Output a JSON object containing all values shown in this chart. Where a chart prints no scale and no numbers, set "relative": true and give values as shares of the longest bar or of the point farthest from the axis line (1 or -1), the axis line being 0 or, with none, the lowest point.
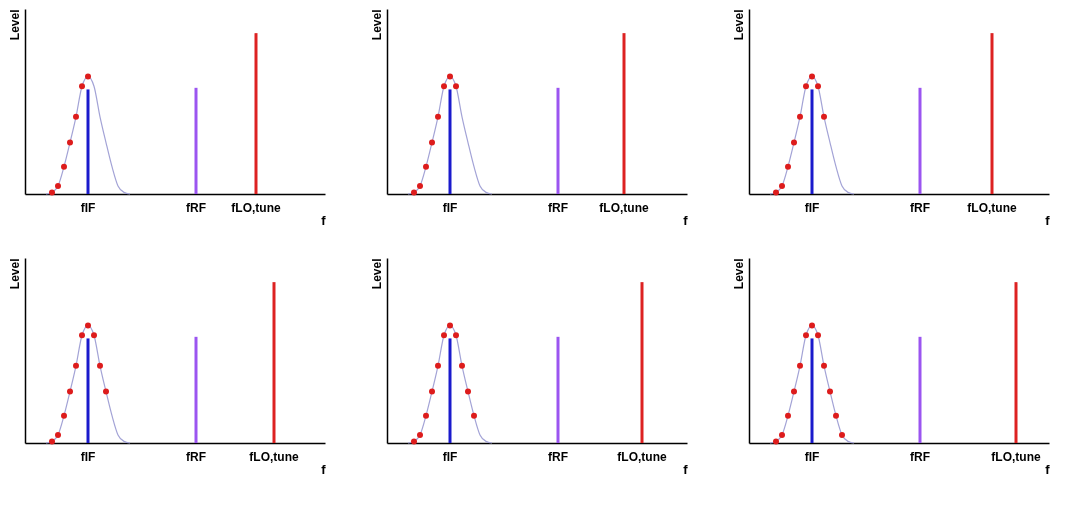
{
  "chart_data": [
    {
      "type": "bar",
      "relative": true,
      "ylabel": "Level",
      "xlabel": "f",
      "tick_labels": "x",
      "categories": [
        null,
        null,
        null,
        null,
        null,
        null,
        null,
        null,
        null,
        null,
        "fIF",
        null,
        null,
        null,
        null,
        null,
        null,
        null,
        null,
        null,
        null,
        null,
        null,
        null,
        null,
        null,
        null,
        null,
        "fRF",
        null,
        null,
        null,
        null,
        null,
        null,
        null,
        null,
        null,
        "fLO,tune",
        null,
        null,
        null,
        null,
        null,
        null,
        null,
        null,
        null,
        null,
        null
      ],
      "series": [
        {
          "type": "line",
          "color": "#a3a3d6",
          "values": [
            null,
            null,
            null,
            0,
            0.01,
            0.05,
            0.17,
            0.32,
            0.48,
            0.67,
            0.73,
            0.67,
            0.48,
            0.32,
            0.17,
            0.05,
            0.01,
            0,
            null,
            null,
            null,
            null,
            null,
            null,
            null,
            null,
            null,
            null,
            null,
            null,
            null,
            null,
            null,
            null,
            null,
            null,
            null,
            null,
            null,
            null,
            null,
            null,
            null,
            null,
            null,
            null,
            null,
            null,
            null,
            null
          ]
        },
        {
          "type": "scatter",
          "marker": "circle",
          "color": "#dd1c1c",
          "values": [
            null,
            null,
            null,
            null,
            0.01,
            0.05,
            0.17,
            0.32,
            0.48,
            0.67,
            0.73,
            null,
            null,
            null,
            null,
            null,
            null,
            null,
            null,
            null,
            null,
            null,
            null,
            null,
            null,
            null,
            null,
            null,
            null,
            null,
            null,
            null,
            null,
            null,
            null,
            null,
            null,
            null,
            null,
            null,
            null,
            null,
            null,
            null,
            null,
            null,
            null,
            null,
            null,
            null
          ]
        },
        {
          "color": "#1a1acc",
          "values": [
            null,
            null,
            null,
            null,
            null,
            null,
            null,
            null,
            null,
            null,
            0.65,
            null,
            null,
            null,
            null,
            null,
            null,
            null,
            null,
            null,
            null,
            null,
            null,
            null,
            null,
            null,
            null,
            null,
            null,
            null,
            null,
            null,
            null,
            null,
            null,
            null,
            null,
            null,
            null,
            null,
            null,
            null,
            null,
            null,
            null,
            null,
            null,
            null,
            null,
            null
          ]
        },
        {
          "color": "#9b55f0",
          "values": [
            null,
            null,
            null,
            null,
            null,
            null,
            null,
            null,
            null,
            null,
            null,
            null,
            null,
            null,
            null,
            null,
            null,
            null,
            null,
            null,
            null,
            null,
            null,
            null,
            null,
            null,
            null,
            null,
            0.66,
            null,
            null,
            null,
            null,
            null,
            null,
            null,
            null,
            null,
            null,
            null,
            null,
            null,
            null,
            null,
            null,
            null,
            null,
            null,
            null,
            null
          ]
        },
        {
          "color": "#dd2222",
          "values": [
            null,
            null,
            null,
            null,
            null,
            null,
            null,
            null,
            null,
            null,
            null,
            null,
            null,
            null,
            null,
            null,
            null,
            null,
            null,
            null,
            null,
            null,
            null,
            null,
            null,
            null,
            null,
            null,
            null,
            null,
            null,
            null,
            null,
            null,
            null,
            null,
            null,
            null,
            1,
            null,
            null,
            null,
            null,
            null,
            null,
            null,
            null,
            null,
            null,
            null
          ]
        }
      ]
    },
    {
      "type": "bar",
      "relative": true,
      "ylabel": "Level",
      "xlabel": "f",
      "tick_labels": "x",
      "categories": [
        null,
        null,
        null,
        null,
        null,
        null,
        null,
        null,
        null,
        null,
        "fIF",
        null,
        null,
        null,
        null,
        null,
        null,
        null,
        null,
        null,
        null,
        null,
        null,
        null,
        null,
        null,
        null,
        null,
        "fRF",
        null,
        null,
        null,
        null,
        null,
        null,
        null,
        null,
        null,
        null,
        "fLO,tune",
        null,
        null,
        null,
        null,
        null,
        null,
        null,
        null,
        null,
        null
      ],
      "series": [
        {
          "type": "line",
          "color": "#a3a3d6",
          "values": [
            null,
            null,
            null,
            0,
            0.01,
            0.05,
            0.17,
            0.32,
            0.48,
            0.67,
            0.73,
            0.67,
            0.48,
            0.32,
            0.17,
            0.05,
            0.01,
            0,
            null,
            null,
            null,
            null,
            null,
            null,
            null,
            null,
            null,
            null,
            null,
            null,
            null,
            null,
            null,
            null,
            null,
            null,
            null,
            null,
            null,
            null,
            null,
            null,
            null,
            null,
            null,
            null,
            null,
            null,
            null,
            null
          ]
        },
        {
          "type": "scatter",
          "marker": "circle",
          "color": "#dd1c1c",
          "values": [
            null,
            null,
            null,
            null,
            0.01,
            0.05,
            0.17,
            0.32,
            0.48,
            0.67,
            0.73,
            0.67,
            null,
            null,
            null,
            null,
            null,
            null,
            null,
            null,
            null,
            null,
            null,
            null,
            null,
            null,
            null,
            null,
            null,
            null,
            null,
            null,
            null,
            null,
            null,
            null,
            null,
            null,
            null,
            null,
            null,
            null,
            null,
            null,
            null,
            null,
            null,
            null,
            null,
            null
          ]
        },
        {
          "color": "#1a1acc",
          "values": [
            null,
            null,
            null,
            null,
            null,
            null,
            null,
            null,
            null,
            null,
            0.65,
            null,
            null,
            null,
            null,
            null,
            null,
            null,
            null,
            null,
            null,
            null,
            null,
            null,
            null,
            null,
            null,
            null,
            null,
            null,
            null,
            null,
            null,
            null,
            null,
            null,
            null,
            null,
            null,
            null,
            null,
            null,
            null,
            null,
            null,
            null,
            null,
            null,
            null,
            null
          ]
        },
        {
          "color": "#9b55f0",
          "values": [
            null,
            null,
            null,
            null,
            null,
            null,
            null,
            null,
            null,
            null,
            null,
            null,
            null,
            null,
            null,
            null,
            null,
            null,
            null,
            null,
            null,
            null,
            null,
            null,
            null,
            null,
            null,
            null,
            0.66,
            null,
            null,
            null,
            null,
            null,
            null,
            null,
            null,
            null,
            null,
            null,
            null,
            null,
            null,
            null,
            null,
            null,
            null,
            null,
            null,
            null
          ]
        },
        {
          "color": "#dd2222",
          "values": [
            null,
            null,
            null,
            null,
            null,
            null,
            null,
            null,
            null,
            null,
            null,
            null,
            null,
            null,
            null,
            null,
            null,
            null,
            null,
            null,
            null,
            null,
            null,
            null,
            null,
            null,
            null,
            null,
            null,
            null,
            null,
            null,
            null,
            null,
            null,
            null,
            null,
            null,
            null,
            1,
            null,
            null,
            null,
            null,
            null,
            null,
            null,
            null,
            null,
            null
          ]
        }
      ]
    },
    {
      "type": "bar",
      "relative": true,
      "ylabel": "Level",
      "xlabel": "f",
      "tick_labels": "x",
      "categories": [
        null,
        null,
        null,
        null,
        null,
        null,
        null,
        null,
        null,
        null,
        "fIF",
        null,
        null,
        null,
        null,
        null,
        null,
        null,
        null,
        null,
        null,
        null,
        null,
        null,
        null,
        null,
        null,
        null,
        "fRF",
        null,
        null,
        null,
        null,
        null,
        null,
        null,
        null,
        null,
        null,
        null,
        "fLO,tune",
        null,
        null,
        null,
        null,
        null,
        null,
        null,
        null,
        null
      ],
      "series": [
        {
          "type": "line",
          "color": "#a3a3d6",
          "values": [
            null,
            null,
            null,
            0,
            0.01,
            0.05,
            0.17,
            0.32,
            0.48,
            0.67,
            0.73,
            0.67,
            0.48,
            0.32,
            0.17,
            0.05,
            0.01,
            0,
            null,
            null,
            null,
            null,
            null,
            null,
            null,
            null,
            null,
            null,
            null,
            null,
            null,
            null,
            null,
            null,
            null,
            null,
            null,
            null,
            null,
            null,
            null,
            null,
            null,
            null,
            null,
            null,
            null,
            null,
            null,
            null
          ]
        },
        {
          "type": "scatter",
          "marker": "circle",
          "color": "#dd1c1c",
          "values": [
            null,
            null,
            null,
            null,
            0.01,
            0.05,
            0.17,
            0.32,
            0.48,
            0.67,
            0.73,
            0.67,
            0.48,
            null,
            null,
            null,
            null,
            null,
            null,
            null,
            null,
            null,
            null,
            null,
            null,
            null,
            null,
            null,
            null,
            null,
            null,
            null,
            null,
            null,
            null,
            null,
            null,
            null,
            null,
            null,
            null,
            null,
            null,
            null,
            null,
            null,
            null,
            null,
            null,
            null
          ]
        },
        {
          "color": "#1a1acc",
          "values": [
            null,
            null,
            null,
            null,
            null,
            null,
            null,
            null,
            null,
            null,
            0.65,
            null,
            null,
            null,
            null,
            null,
            null,
            null,
            null,
            null,
            null,
            null,
            null,
            null,
            null,
            null,
            null,
            null,
            null,
            null,
            null,
            null,
            null,
            null,
            null,
            null,
            null,
            null,
            null,
            null,
            null,
            null,
            null,
            null,
            null,
            null,
            null,
            null,
            null,
            null
          ]
        },
        {
          "color": "#9b55f0",
          "values": [
            null,
            null,
            null,
            null,
            null,
            null,
            null,
            null,
            null,
            null,
            null,
            null,
            null,
            null,
            null,
            null,
            null,
            null,
            null,
            null,
            null,
            null,
            null,
            null,
            null,
            null,
            null,
            null,
            0.66,
            null,
            null,
            null,
            null,
            null,
            null,
            null,
            null,
            null,
            null,
            null,
            null,
            null,
            null,
            null,
            null,
            null,
            null,
            null,
            null,
            null
          ]
        },
        {
          "color": "#dd2222",
          "values": [
            null,
            null,
            null,
            null,
            null,
            null,
            null,
            null,
            null,
            null,
            null,
            null,
            null,
            null,
            null,
            null,
            null,
            null,
            null,
            null,
            null,
            null,
            null,
            null,
            null,
            null,
            null,
            null,
            null,
            null,
            null,
            null,
            null,
            null,
            null,
            null,
            null,
            null,
            null,
            null,
            1,
            null,
            null,
            null,
            null,
            null,
            null,
            null,
            null,
            null
          ]
        }
      ]
    },
    {
      "type": "bar",
      "relative": true,
      "ylabel": "Level",
      "xlabel": "f",
      "tick_labels": "x",
      "categories": [
        null,
        null,
        null,
        null,
        null,
        null,
        null,
        null,
        null,
        null,
        "fIF",
        null,
        null,
        null,
        null,
        null,
        null,
        null,
        null,
        null,
        null,
        null,
        null,
        null,
        null,
        null,
        null,
        null,
        "fRF",
        null,
        null,
        null,
        null,
        null,
        null,
        null,
        null,
        null,
        null,
        null,
        null,
        "fLO,tune",
        null,
        null,
        null,
        null,
        null,
        null,
        null,
        null
      ],
      "series": [
        {
          "type": "line",
          "color": "#a3a3d6",
          "values": [
            null,
            null,
            null,
            0,
            0.01,
            0.05,
            0.17,
            0.32,
            0.48,
            0.67,
            0.73,
            0.67,
            0.48,
            0.32,
            0.17,
            0.05,
            0.01,
            0,
            null,
            null,
            null,
            null,
            null,
            null,
            null,
            null,
            null,
            null,
            null,
            null,
            null,
            null,
            null,
            null,
            null,
            null,
            null,
            null,
            null,
            null,
            null,
            null,
            null,
            null,
            null,
            null,
            null,
            null,
            null,
            null
          ]
        },
        {
          "type": "scatter",
          "marker": "circle",
          "color": "#dd1c1c",
          "values": [
            null,
            null,
            null,
            null,
            0.01,
            0.05,
            0.17,
            0.32,
            0.48,
            0.67,
            0.73,
            0.67,
            0.48,
            0.32,
            null,
            null,
            null,
            null,
            null,
            null,
            null,
            null,
            null,
            null,
            null,
            null,
            null,
            null,
            null,
            null,
            null,
            null,
            null,
            null,
            null,
            null,
            null,
            null,
            null,
            null,
            null,
            null,
            null,
            null,
            null,
            null,
            null,
            null,
            null,
            null
          ]
        },
        {
          "color": "#1a1acc",
          "values": [
            null,
            null,
            null,
            null,
            null,
            null,
            null,
            null,
            null,
            null,
            0.65,
            null,
            null,
            null,
            null,
            null,
            null,
            null,
            null,
            null,
            null,
            null,
            null,
            null,
            null,
            null,
            null,
            null,
            null,
            null,
            null,
            null,
            null,
            null,
            null,
            null,
            null,
            null,
            null,
            null,
            null,
            null,
            null,
            null,
            null,
            null,
            null,
            null,
            null,
            null
          ]
        },
        {
          "color": "#9b55f0",
          "values": [
            null,
            null,
            null,
            null,
            null,
            null,
            null,
            null,
            null,
            null,
            null,
            null,
            null,
            null,
            null,
            null,
            null,
            null,
            null,
            null,
            null,
            null,
            null,
            null,
            null,
            null,
            null,
            null,
            0.66,
            null,
            null,
            null,
            null,
            null,
            null,
            null,
            null,
            null,
            null,
            null,
            null,
            null,
            null,
            null,
            null,
            null,
            null,
            null,
            null,
            null
          ]
        },
        {
          "color": "#dd2222",
          "values": [
            null,
            null,
            null,
            null,
            null,
            null,
            null,
            null,
            null,
            null,
            null,
            null,
            null,
            null,
            null,
            null,
            null,
            null,
            null,
            null,
            null,
            null,
            null,
            null,
            null,
            null,
            null,
            null,
            null,
            null,
            null,
            null,
            null,
            null,
            null,
            null,
            null,
            null,
            null,
            null,
            null,
            1,
            null,
            null,
            null,
            null,
            null,
            null,
            null,
            null
          ]
        }
      ]
    },
    {
      "type": "bar",
      "relative": true,
      "ylabel": "Level",
      "xlabel": "f",
      "tick_labels": "x",
      "categories": [
        null,
        null,
        null,
        null,
        null,
        null,
        null,
        null,
        null,
        null,
        "fIF",
        null,
        null,
        null,
        null,
        null,
        null,
        null,
        null,
        null,
        null,
        null,
        null,
        null,
        null,
        null,
        null,
        null,
        "fRF",
        null,
        null,
        null,
        null,
        null,
        null,
        null,
        null,
        null,
        null,
        null,
        null,
        null,
        "fLO,tune",
        null,
        null,
        null,
        null,
        null,
        null,
        null
      ],
      "series": [
        {
          "type": "line",
          "color": "#a3a3d6",
          "values": [
            null,
            null,
            null,
            0,
            0.01,
            0.05,
            0.17,
            0.32,
            0.48,
            0.67,
            0.73,
            0.67,
            0.48,
            0.32,
            0.17,
            0.05,
            0.01,
            0,
            null,
            null,
            null,
            null,
            null,
            null,
            null,
            null,
            null,
            null,
            null,
            null,
            null,
            null,
            null,
            null,
            null,
            null,
            null,
            null,
            null,
            null,
            null,
            null,
            null,
            null,
            null,
            null,
            null,
            null,
            null,
            null
          ]
        },
        {
          "type": "scatter",
          "marker": "circle",
          "color": "#dd1c1c",
          "values": [
            null,
            null,
            null,
            null,
            0.01,
            0.05,
            0.17,
            0.32,
            0.48,
            0.67,
            0.73,
            0.67,
            0.48,
            0.32,
            0.17,
            null,
            null,
            null,
            null,
            null,
            null,
            null,
            null,
            null,
            null,
            null,
            null,
            null,
            null,
            null,
            null,
            null,
            null,
            null,
            null,
            null,
            null,
            null,
            null,
            null,
            null,
            null,
            null,
            null,
            null,
            null,
            null,
            null,
            null,
            null
          ]
        },
        {
          "color": "#1a1acc",
          "values": [
            null,
            null,
            null,
            null,
            null,
            null,
            null,
            null,
            null,
            null,
            0.65,
            null,
            null,
            null,
            null,
            null,
            null,
            null,
            null,
            null,
            null,
            null,
            null,
            null,
            null,
            null,
            null,
            null,
            null,
            null,
            null,
            null,
            null,
            null,
            null,
            null,
            null,
            null,
            null,
            null,
            null,
            null,
            null,
            null,
            null,
            null,
            null,
            null,
            null,
            null
          ]
        },
        {
          "color": "#9b55f0",
          "values": [
            null,
            null,
            null,
            null,
            null,
            null,
            null,
            null,
            null,
            null,
            null,
            null,
            null,
            null,
            null,
            null,
            null,
            null,
            null,
            null,
            null,
            null,
            null,
            null,
            null,
            null,
            null,
            null,
            0.66,
            null,
            null,
            null,
            null,
            null,
            null,
            null,
            null,
            null,
            null,
            null,
            null,
            null,
            null,
            null,
            null,
            null,
            null,
            null,
            null,
            null
          ]
        },
        {
          "color": "#dd2222",
          "values": [
            null,
            null,
            null,
            null,
            null,
            null,
            null,
            null,
            null,
            null,
            null,
            null,
            null,
            null,
            null,
            null,
            null,
            null,
            null,
            null,
            null,
            null,
            null,
            null,
            null,
            null,
            null,
            null,
            null,
            null,
            null,
            null,
            null,
            null,
            null,
            null,
            null,
            null,
            null,
            null,
            null,
            null,
            1,
            null,
            null,
            null,
            null,
            null,
            null,
            null
          ]
        }
      ]
    },
    {
      "type": "bar",
      "relative": true,
      "ylabel": "Level",
      "xlabel": "f",
      "tick_labels": "x",
      "categories": [
        null,
        null,
        null,
        null,
        null,
        null,
        null,
        null,
        null,
        null,
        "fIF",
        null,
        null,
        null,
        null,
        null,
        null,
        null,
        null,
        null,
        null,
        null,
        null,
        null,
        null,
        null,
        null,
        null,
        "fRF",
        null,
        null,
        null,
        null,
        null,
        null,
        null,
        null,
        null,
        null,
        null,
        null,
        null,
        null,
        null,
        "fLO,tune",
        null,
        null,
        null,
        null,
        null
      ],
      "series": [
        {
          "type": "line",
          "color": "#a3a3d6",
          "values": [
            null,
            null,
            null,
            0,
            0.01,
            0.05,
            0.17,
            0.32,
            0.48,
            0.67,
            0.73,
            0.67,
            0.48,
            0.32,
            0.17,
            0.05,
            0.01,
            0,
            null,
            null,
            null,
            null,
            null,
            null,
            null,
            null,
            null,
            null,
            null,
            null,
            null,
            null,
            null,
            null,
            null,
            null,
            null,
            null,
            null,
            null,
            null,
            null,
            null,
            null,
            null,
            null,
            null,
            null,
            null,
            null
          ]
        },
        {
          "type": "scatter",
          "marker": "circle",
          "color": "#dd1c1c",
          "values": [
            null,
            null,
            null,
            null,
            0.01,
            0.05,
            0.17,
            0.32,
            0.48,
            0.67,
            0.73,
            0.67,
            0.48,
            0.32,
            0.17,
            0.05,
            null,
            null,
            null,
            null,
            null,
            null,
            null,
            null,
            null,
            null,
            null,
            null,
            null,
            null,
            null,
            null,
            null,
            null,
            null,
            null,
            null,
            null,
            null,
            null,
            null,
            null,
            null,
            null,
            null,
            null,
            null,
            null,
            null,
            null
          ]
        },
        {
          "color": "#1a1acc",
          "values": [
            null,
            null,
            null,
            null,
            null,
            null,
            null,
            null,
            null,
            null,
            0.65,
            null,
            null,
            null,
            null,
            null,
            null,
            null,
            null,
            null,
            null,
            null,
            null,
            null,
            null,
            null,
            null,
            null,
            null,
            null,
            null,
            null,
            null,
            null,
            null,
            null,
            null,
            null,
            null,
            null,
            null,
            null,
            null,
            null,
            null,
            null,
            null,
            null,
            null,
            null
          ]
        },
        {
          "color": "#9b55f0",
          "values": [
            null,
            null,
            null,
            null,
            null,
            null,
            null,
            null,
            null,
            null,
            null,
            null,
            null,
            null,
            null,
            null,
            null,
            null,
            null,
            null,
            null,
            null,
            null,
            null,
            null,
            null,
            null,
            null,
            0.66,
            null,
            null,
            null,
            null,
            null,
            null,
            null,
            null,
            null,
            null,
            null,
            null,
            null,
            null,
            null,
            null,
            null,
            null,
            null,
            null,
            null
          ]
        },
        {
          "color": "#dd2222",
          "values": [
            null,
            null,
            null,
            null,
            null,
            null,
            null,
            null,
            null,
            null,
            null,
            null,
            null,
            null,
            null,
            null,
            null,
            null,
            null,
            null,
            null,
            null,
            null,
            null,
            null,
            null,
            null,
            null,
            null,
            null,
            null,
            null,
            null,
            null,
            null,
            null,
            null,
            null,
            null,
            null,
            null,
            null,
            null,
            null,
            1,
            null,
            null,
            null,
            null,
            null
          ]
        }
      ]
    }
  ]
}
